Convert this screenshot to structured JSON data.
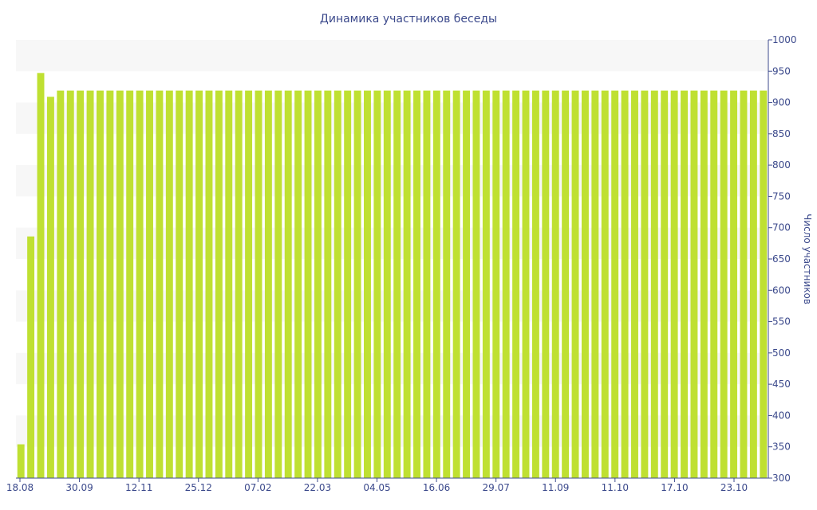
{
  "colors": {
    "bar": "#bfe032",
    "band": "#f7f7f7",
    "axis": "#3c4a8c",
    "text": "#3c4a8c"
  },
  "chart_data": {
    "type": "bar",
    "title": "Динамика участников беседы",
    "xlabel": "",
    "ylabel": "Число участников",
    "y_axis_position": "right",
    "ylim": [
      300,
      1000
    ],
    "yticks": [
      300,
      350,
      400,
      450,
      500,
      550,
      600,
      650,
      700,
      750,
      800,
      850,
      900,
      950,
      1000
    ],
    "x_tick_labels": [
      "18.08",
      "30.09",
      "12.11",
      "25.12",
      "07.02",
      "22.03",
      "04.05",
      "16.06",
      "29.07",
      "11.09",
      "11.10",
      "17.10",
      "23.10"
    ],
    "grid": "alternating horizontal bands",
    "legend": "none",
    "series": [
      {
        "values": [
          354,
          686,
          947,
          909,
          919,
          919,
          919,
          919,
          919,
          919,
          919,
          919,
          919,
          919,
          919,
          919,
          919,
          919,
          919,
          919,
          919,
          919,
          919,
          919,
          919,
          919,
          919,
          919,
          919,
          919,
          919,
          919,
          919,
          919,
          919,
          919,
          919,
          919,
          919,
          919,
          919,
          919,
          919,
          919,
          919,
          919,
          919,
          919,
          919,
          919,
          919,
          919,
          919,
          919,
          919,
          919,
          919,
          919,
          919,
          919,
          919,
          919,
          919,
          919,
          919,
          919,
          919,
          919,
          919,
          919,
          919,
          919,
          919,
          919,
          919,
          919
        ]
      }
    ]
  }
}
